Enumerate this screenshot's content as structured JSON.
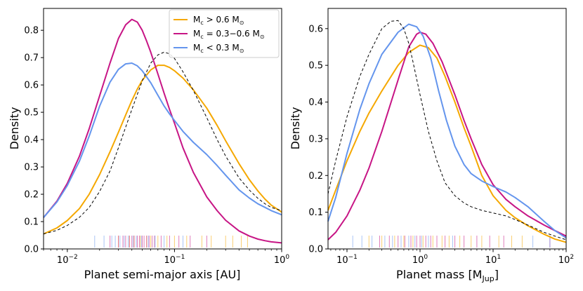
{
  "colors": {
    "massive": "#f5a800",
    "medium": "#c71585",
    "small": "#6495ed",
    "reference": "#000000"
  },
  "legend": [
    {
      "key": "massive",
      "prefix": "M",
      "sub": "c",
      "text": " > 0.6 M",
      "sun": "⊙"
    },
    {
      "key": "medium",
      "prefix": "M",
      "sub": "c",
      "text": " = 0.3−0.6 M",
      "sun": "⊙"
    },
    {
      "key": "small",
      "prefix": "M",
      "sub": "c",
      "text": " < 0.3 M",
      "sun": "⊙"
    }
  ],
  "chart_data": [
    {
      "type": "line",
      "xscale": "log",
      "xlabel": "Planet semi-major axis [AU]",
      "ylabel": "Density",
      "xlim": [
        0.006,
        1.0
      ],
      "ylim": [
        0,
        0.88
      ],
      "yticks": [
        "0.0",
        "0.1",
        "0.2",
        "0.3",
        "0.4",
        "0.5",
        "0.6",
        "0.7",
        "0.8"
      ],
      "xticks": [
        {
          "value": 0.01,
          "base": "10",
          "exp": "−2"
        },
        {
          "value": 0.1,
          "base": "10",
          "exp": "−1"
        },
        {
          "value": 1.0,
          "base": "10",
          "exp": "0"
        }
      ],
      "legend_position": "top-right",
      "series": [
        {
          "name": "Mc > 0.6 Msun",
          "color_key": "massive",
          "dash": false,
          "x": [
            0.006,
            0.008,
            0.01,
            0.013,
            0.016,
            0.02,
            0.025,
            0.03,
            0.035,
            0.04,
            0.045,
            0.05,
            0.06,
            0.07,
            0.08,
            0.09,
            0.1,
            0.12,
            0.15,
            0.2,
            0.25,
            0.3,
            0.4,
            0.5,
            0.6,
            0.7,
            0.8,
            1.0
          ],
          "y": [
            0.055,
            0.077,
            0.104,
            0.148,
            0.2,
            0.272,
            0.355,
            0.427,
            0.49,
            0.543,
            0.585,
            0.617,
            0.655,
            0.672,
            0.672,
            0.664,
            0.652,
            0.625,
            0.582,
            0.515,
            0.452,
            0.396,
            0.312,
            0.253,
            0.212,
            0.182,
            0.16,
            0.135
          ]
        },
        {
          "name": "Mc = 0.3-0.6 Msun",
          "color_key": "medium",
          "dash": false,
          "x": [
            0.006,
            0.008,
            0.01,
            0.013,
            0.016,
            0.02,
            0.025,
            0.03,
            0.035,
            0.04,
            0.045,
            0.05,
            0.055,
            0.06,
            0.07,
            0.08,
            0.09,
            0.1,
            0.12,
            0.15,
            0.2,
            0.25,
            0.3,
            0.4,
            0.5,
            0.6,
            0.7,
            0.8,
            1.0
          ],
          "y": [
            0.115,
            0.175,
            0.24,
            0.34,
            0.44,
            0.56,
            0.68,
            0.77,
            0.82,
            0.84,
            0.83,
            0.8,
            0.76,
            0.72,
            0.64,
            0.57,
            0.51,
            0.46,
            0.37,
            0.28,
            0.19,
            0.14,
            0.105,
            0.066,
            0.047,
            0.036,
            0.03,
            0.026,
            0.022
          ]
        },
        {
          "name": "Mc < 0.3 Msun",
          "color_key": "small",
          "dash": false,
          "x": [
            0.006,
            0.008,
            0.01,
            0.013,
            0.016,
            0.02,
            0.025,
            0.03,
            0.035,
            0.04,
            0.045,
            0.05,
            0.06,
            0.07,
            0.08,
            0.09,
            0.1,
            0.12,
            0.15,
            0.2,
            0.25,
            0.3,
            0.4,
            0.5,
            0.6,
            0.7,
            0.8,
            1.0
          ],
          "y": [
            0.115,
            0.172,
            0.232,
            0.322,
            0.413,
            0.522,
            0.61,
            0.657,
            0.677,
            0.68,
            0.67,
            0.652,
            0.608,
            0.562,
            0.523,
            0.494,
            0.47,
            0.43,
            0.39,
            0.345,
            0.305,
            0.27,
            0.216,
            0.186,
            0.165,
            0.152,
            0.14,
            0.125
          ]
        },
        {
          "name": "reference",
          "color_key": "reference",
          "dash": true,
          "x": [
            0.006,
            0.008,
            0.01,
            0.013,
            0.016,
            0.02,
            0.025,
            0.03,
            0.04,
            0.05,
            0.06,
            0.07,
            0.08,
            0.09,
            0.1,
            0.12,
            0.15,
            0.2,
            0.25,
            0.3,
            0.4,
            0.5,
            0.6,
            0.7,
            0.8,
            1.0
          ],
          "y": [
            0.055,
            0.068,
            0.086,
            0.116,
            0.152,
            0.21,
            0.285,
            0.37,
            0.51,
            0.615,
            0.68,
            0.71,
            0.72,
            0.714,
            0.697,
            0.648,
            0.58,
            0.48,
            0.4,
            0.34,
            0.26,
            0.215,
            0.185,
            0.165,
            0.152,
            0.14
          ]
        }
      ],
      "rug": [
        {
          "color_key": "massive",
          "x": [
            0.03,
            0.038,
            0.042,
            0.048,
            0.055,
            0.06,
            0.07,
            0.085,
            0.1,
            0.13,
            0.18,
            0.22,
            0.3,
            0.35,
            0.42,
            0.48
          ]
        },
        {
          "color_key": "medium",
          "x": [
            0.025,
            0.03,
            0.033,
            0.035,
            0.038,
            0.04,
            0.042,
            0.045,
            0.047,
            0.05,
            0.052,
            0.055,
            0.058,
            0.062,
            0.065,
            0.075,
            0.09,
            0.11,
            0.14,
            0.2
          ]
        },
        {
          "color_key": "small",
          "x": [
            0.018,
            0.022,
            0.026,
            0.028,
            0.031,
            0.034,
            0.037,
            0.041,
            0.044,
            0.049,
            0.057,
            0.066,
            0.08,
            0.12
          ]
        }
      ]
    },
    {
      "type": "line",
      "xscale": "log",
      "xlabel_prefix": "Planet mass [M",
      "xlabel_sub": "Jup",
      "xlabel_suffix": "]",
      "ylabel": "Density",
      "xlim": [
        0.055,
        100
      ],
      "ylim": [
        0,
        0.655
      ],
      "yticks": [
        "0.0",
        "0.1",
        "0.2",
        "0.3",
        "0.4",
        "0.5",
        "0.6"
      ],
      "xticks": [
        {
          "value": 0.1,
          "base": "10",
          "exp": "−1"
        },
        {
          "value": 1.0,
          "base": "10",
          "exp": "0"
        },
        {
          "value": 10,
          "base": "10",
          "exp": "1"
        },
        {
          "value": 100,
          "base": "10",
          "exp": "2"
        }
      ],
      "series": [
        {
          "name": "Mc > 0.6 Msun",
          "color_key": "massive",
          "dash": false,
          "x": [
            0.055,
            0.07,
            0.1,
            0.15,
            0.2,
            0.3,
            0.5,
            0.7,
            1.0,
            1.3,
            1.7,
            2.2,
            3,
            4,
            5,
            7,
            10,
            15,
            20,
            30,
            50,
            70,
            100
          ],
          "y": [
            0.105,
            0.16,
            0.24,
            0.32,
            0.37,
            0.43,
            0.5,
            0.535,
            0.555,
            0.548,
            0.52,
            0.47,
            0.4,
            0.33,
            0.28,
            0.2,
            0.145,
            0.105,
            0.085,
            0.063,
            0.04,
            0.027,
            0.018
          ]
        },
        {
          "name": "Mc = 0.3-0.6 Msun",
          "color_key": "medium",
          "dash": false,
          "x": [
            0.055,
            0.07,
            0.1,
            0.15,
            0.2,
            0.3,
            0.5,
            0.7,
            0.9,
            1.0,
            1.2,
            1.5,
            2,
            3,
            4,
            5,
            7,
            10,
            15,
            20,
            30,
            50,
            70,
            100
          ],
          "y": [
            0.025,
            0.045,
            0.09,
            0.16,
            0.22,
            0.32,
            0.46,
            0.55,
            0.585,
            0.59,
            0.585,
            0.56,
            0.51,
            0.42,
            0.35,
            0.3,
            0.23,
            0.175,
            0.135,
            0.115,
            0.09,
            0.065,
            0.05,
            0.035
          ]
        },
        {
          "name": "Mc < 0.3 Msun",
          "color_key": "small",
          "dash": false,
          "x": [
            0.055,
            0.07,
            0.1,
            0.15,
            0.2,
            0.3,
            0.5,
            0.7,
            0.9,
            1.1,
            1.4,
            1.8,
            2.3,
            3,
            4,
            5,
            7,
            10,
            15,
            20,
            30,
            50,
            70,
            100
          ],
          "y": [
            0.075,
            0.14,
            0.26,
            0.38,
            0.45,
            0.53,
            0.59,
            0.612,
            0.605,
            0.58,
            0.52,
            0.43,
            0.35,
            0.28,
            0.23,
            0.205,
            0.185,
            0.17,
            0.155,
            0.14,
            0.115,
            0.075,
            0.05,
            0.03
          ]
        },
        {
          "name": "reference",
          "color_key": "reference",
          "dash": true,
          "x": [
            0.055,
            0.07,
            0.1,
            0.15,
            0.2,
            0.3,
            0.4,
            0.5,
            0.6,
            0.7,
            0.8,
            1.0,
            1.3,
            1.7,
            2.2,
            3,
            4,
            5,
            7,
            10,
            15,
            20,
            30,
            50,
            70,
            100
          ],
          "y": [
            0.15,
            0.24,
            0.36,
            0.47,
            0.53,
            0.6,
            0.62,
            0.622,
            0.6,
            0.56,
            0.51,
            0.42,
            0.32,
            0.24,
            0.18,
            0.145,
            0.125,
            0.115,
            0.105,
            0.098,
            0.09,
            0.08,
            0.065,
            0.045,
            0.035,
            0.025
          ]
        }
      ],
      "rug": [
        {
          "color_key": "massive",
          "x": [
            0.2,
            0.3,
            0.45,
            0.6,
            0.8,
            1.1,
            1.5,
            2,
            2.5,
            3.5,
            5,
            7,
            12,
            18,
            25
          ]
        },
        {
          "color_key": "medium",
          "x": [
            0.28,
            0.38,
            0.5,
            0.62,
            0.75,
            0.9,
            1.0,
            1.2,
            1.4,
            1.7,
            2.2,
            3,
            4,
            6,
            9,
            14,
            60
          ]
        },
        {
          "color_key": "small",
          "x": [
            0.12,
            0.16,
            0.22,
            0.33,
            0.42,
            0.55,
            0.7,
            0.85,
            1.05,
            1.3,
            2.8,
            35,
            60
          ]
        }
      ]
    }
  ]
}
